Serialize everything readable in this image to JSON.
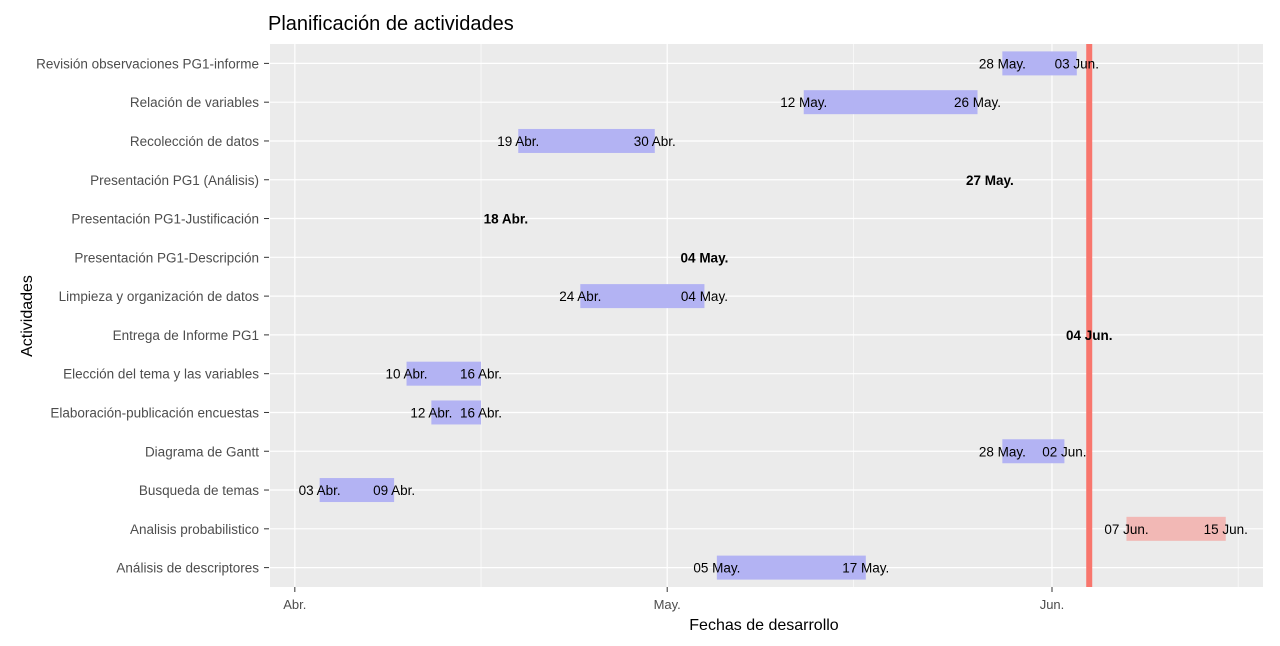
{
  "chart_data": {
    "type": "gantt",
    "title": "Planificación de actividades",
    "xlabel": "Fechas de desarrollo",
    "ylabel": "Actividades",
    "x_ticks": [
      {
        "date": "2023-04-01",
        "label": "Abr."
      },
      {
        "date": "2023-05-01",
        "label": "May."
      },
      {
        "date": "2023-06-01",
        "label": "Jun."
      }
    ],
    "xlim": [
      "2023-03-30",
      "2023-06-18"
    ],
    "grid": true,
    "today_line": {
      "date": "2023-06-04",
      "color": "#f8766d"
    },
    "colors": {
      "done": "#b3b3f3",
      "pending": "#f2b8b5",
      "panel": "#ebebeb",
      "grid": "#ffffff"
    },
    "tasks": [
      {
        "name": "Revisión observaciones PG1-informe",
        "start": "2023-05-28",
        "end": "2023-06-03",
        "start_label": "28 May.",
        "end_label": "03 Jun.",
        "status": "done"
      },
      {
        "name": "Relación de variables",
        "start": "2023-05-12",
        "end": "2023-05-26",
        "start_label": "12 May.",
        "end_label": "26 May.",
        "status": "done"
      },
      {
        "name": "Recolección de datos",
        "start": "2023-04-19",
        "end": "2023-04-30",
        "start_label": "19 Abr.",
        "end_label": "30 Abr.",
        "status": "done"
      },
      {
        "name": "Presentación PG1 (Análisis)",
        "start": "2023-05-27",
        "end": "2023-05-27",
        "start_label": "27 May.",
        "end_label": "",
        "status": "milestone"
      },
      {
        "name": "Presentación PG1-Justificación",
        "start": "2023-04-18",
        "end": "2023-04-18",
        "start_label": "18 Abr.",
        "end_label": "",
        "status": "milestone"
      },
      {
        "name": "Presentación PG1-Descripción",
        "start": "2023-05-04",
        "end": "2023-05-04",
        "start_label": "04 May.",
        "end_label": "",
        "status": "milestone"
      },
      {
        "name": "Limpieza y organización de datos",
        "start": "2023-04-24",
        "end": "2023-05-04",
        "start_label": "24 Abr.",
        "end_label": "04 May.",
        "status": "done"
      },
      {
        "name": "Entrega de Informe PG1",
        "start": "2023-06-04",
        "end": "2023-06-04",
        "start_label": "04 Jun.",
        "end_label": "",
        "status": "milestone"
      },
      {
        "name": "Elección del tema y las variables",
        "start": "2023-04-10",
        "end": "2023-04-16",
        "start_label": "10 Abr.",
        "end_label": "16 Abr.",
        "status": "done"
      },
      {
        "name": "Elaboración-publicación encuestas",
        "start": "2023-04-12",
        "end": "2023-04-16",
        "start_label": "12 Abr.",
        "end_label": "16 Abr.",
        "status": "done"
      },
      {
        "name": "Diagrama de Gantt",
        "start": "2023-05-28",
        "end": "2023-06-02",
        "start_label": "28 May.",
        "end_label": "02 Jun.",
        "status": "done"
      },
      {
        "name": "Busqueda de temas",
        "start": "2023-04-03",
        "end": "2023-04-09",
        "start_label": "03 Abr.",
        "end_label": "09 Abr.",
        "status": "done"
      },
      {
        "name": "Analisis probabilistico",
        "start": "2023-06-07",
        "end": "2023-06-15",
        "start_label": "07 Jun.",
        "end_label": "15 Jun.",
        "status": "pending"
      },
      {
        "name": "Análisis de descriptores",
        "start": "2023-05-05",
        "end": "2023-05-17",
        "start_label": "05 May.",
        "end_label": "17 May.",
        "status": "done"
      }
    ]
  }
}
